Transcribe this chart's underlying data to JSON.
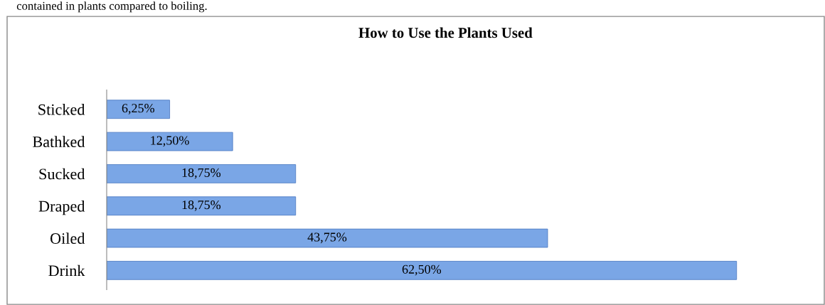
{
  "chart_data": {
    "type": "bar",
    "orientation": "horizontal",
    "title": "How to Use the Plants Used",
    "categories": [
      "Sticked",
      "Bathked",
      "Sucked",
      "Draped",
      "Oiled",
      "Drink"
    ],
    "values": [
      6.25,
      12.5,
      18.75,
      18.75,
      43.75,
      62.5
    ],
    "value_labels": [
      "6,25%",
      "12,50%",
      "18,75%",
      "18,75%",
      "43,75%",
      "62,50%"
    ],
    "color": "#7aa6e6",
    "tick_labels": "y",
    "grid": false,
    "legend": false,
    "annotations": [
      "contained in plants compared to boiling."
    ]
  }
}
